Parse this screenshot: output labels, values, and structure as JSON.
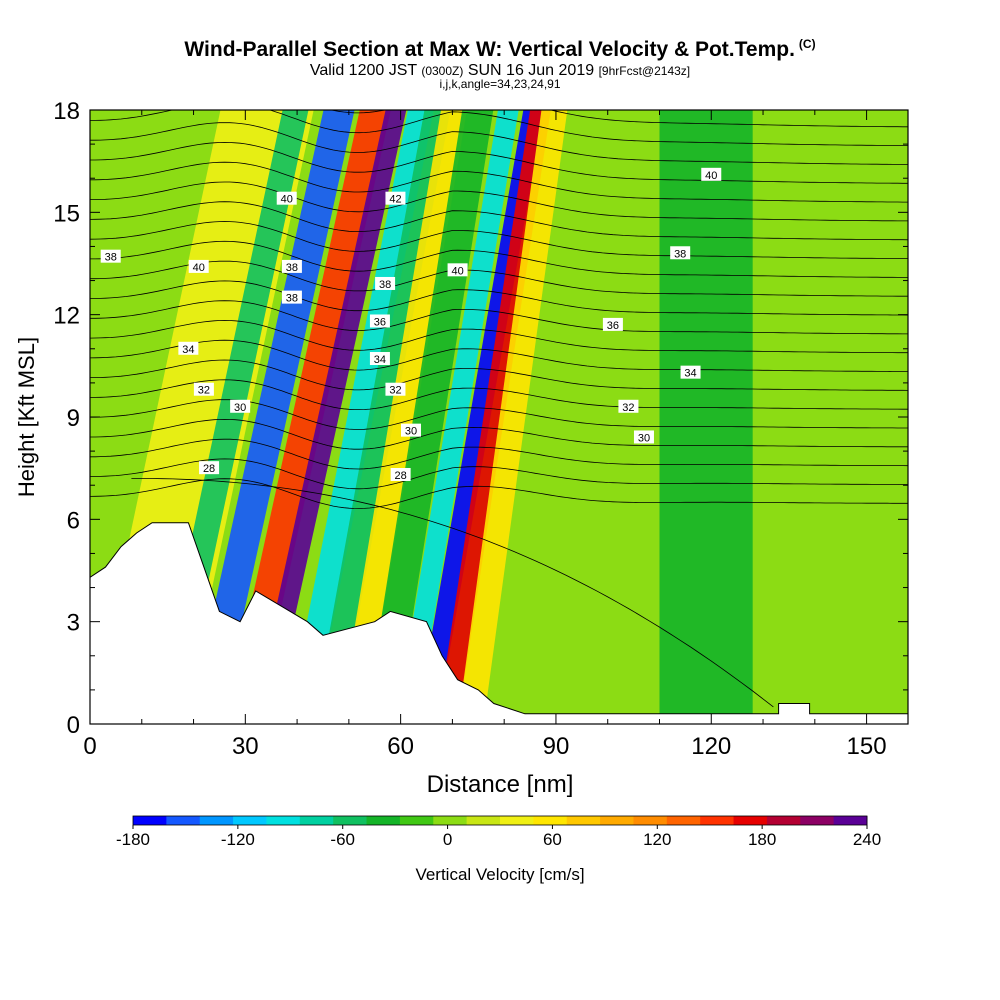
{
  "header": {
    "title": "Wind-Parallel Section at Max W: Vertical Velocity & Pot.Temp.",
    "copyright": "(C)",
    "valid_prefix": "Valid 1200 JST",
    "valid_utc": "(0300Z)",
    "valid_date": "SUN 16 Jun 2019",
    "forecast": "[9hrFcst@2143z]",
    "ijk": "i,j,k,angle=34,23,24,91"
  },
  "chart_data": {
    "type": "heatmap",
    "title": "Wind-Parallel Section at Max W: Vertical Velocity & Pot.Temp.",
    "xlabel": "Distance [nm]",
    "ylabel": "Height [Kft MSL]",
    "xlim": [
      0,
      158
    ],
    "ylim": [
      0,
      18
    ],
    "x_ticks": [
      0,
      30,
      60,
      90,
      120,
      150
    ],
    "y_ticks": [
      0,
      3,
      6,
      9,
      12,
      15,
      18
    ],
    "colorbar": {
      "label": "Vertical Velocity [cm/s]",
      "ticks": [
        -180,
        -120,
        -60,
        0,
        60,
        120,
        180,
        240
      ],
      "min": -180,
      "max": 240,
      "colors": [
        "#0000ff",
        "#1458ff",
        "#0096ff",
        "#00c8ff",
        "#00e0e0",
        "#00d0a0",
        "#10c060",
        "#14b428",
        "#40c814",
        "#8cdc14",
        "#c8e614",
        "#f0f014",
        "#ffe600",
        "#ffc800",
        "#ffaa00",
        "#ff8c00",
        "#ff6400",
        "#ff3200",
        "#e60000",
        "#b40032",
        "#8c0064",
        "#5a0096"
      ]
    },
    "terrain_kft": [
      [
        0,
        4.3
      ],
      [
        3,
        4.6
      ],
      [
        6,
        5.2
      ],
      [
        9,
        5.6
      ],
      [
        12,
        5.9
      ],
      [
        19,
        5.9
      ],
      [
        22,
        4.6
      ],
      [
        25,
        3.3
      ],
      [
        29,
        3.0
      ],
      [
        32,
        3.9
      ],
      [
        42,
        3.0
      ],
      [
        45,
        2.6
      ],
      [
        55,
        3.0
      ],
      [
        58,
        3.3
      ],
      [
        65,
        3.0
      ],
      [
        68,
        2.0
      ],
      [
        71,
        1.3
      ],
      [
        75,
        1.0
      ],
      [
        78,
        0.6
      ],
      [
        84,
        0.3
      ],
      [
        133,
        0.3
      ],
      [
        133,
        0.6
      ],
      [
        139,
        0.6
      ],
      [
        139,
        0.3
      ],
      [
        158,
        0.3
      ]
    ],
    "w_bands": [
      {
        "x_base": 0,
        "slope": 1.4,
        "width": 18,
        "value": 30
      },
      {
        "x_base": 12,
        "slope": 1.4,
        "width": 5,
        "value": -60
      },
      {
        "x_base": 19,
        "slope": 1.45,
        "width": 6,
        "value": -150
      },
      {
        "x_base": 26,
        "slope": 1.45,
        "width": 6,
        "value": 160
      },
      {
        "x_base": 31,
        "slope": 1.45,
        "width": 4,
        "value": 240
      },
      {
        "x_base": 38,
        "slope": 1.3,
        "width": 5,
        "value": -90
      },
      {
        "x_base": 43,
        "slope": 1.2,
        "width": 5,
        "value": -60
      },
      {
        "x_base": 48,
        "slope": 1.1,
        "width": 5,
        "value": 60
      },
      {
        "x_base": 53,
        "slope": 1.05,
        "width": 6,
        "value": -30
      },
      {
        "x_base": 59,
        "slope": 1.1,
        "width": 4,
        "value": -90
      },
      {
        "x_base": 63,
        "slope": 1.15,
        "width": 4,
        "value": -170
      },
      {
        "x_base": 67,
        "slope": 1.0,
        "width": 4,
        "value": 180
      },
      {
        "x_base": 71,
        "slope": 0.9,
        "width": 5,
        "value": 60
      },
      {
        "x_base": 110,
        "slope": 0.0,
        "width": 18,
        "value": -40
      }
    ],
    "theta_contours": [
      {
        "label": "28",
        "label_x": 23,
        "label_y": 7.5
      },
      {
        "label": "28",
        "label_x": 60,
        "label_y": 7.3
      },
      {
        "label": "30",
        "label_x": 29,
        "label_y": 9.3
      },
      {
        "label": "30",
        "label_x": 62,
        "label_y": 8.6
      },
      {
        "label": "30",
        "label_x": 107,
        "label_y": 8.4
      },
      {
        "label": "32",
        "label_x": 22,
        "label_y": 9.8
      },
      {
        "label": "32",
        "label_x": 59,
        "label_y": 9.8
      },
      {
        "label": "32",
        "label_x": 104,
        "label_y": 9.3
      },
      {
        "label": "34",
        "label_x": 19,
        "label_y": 11.0
      },
      {
        "label": "34",
        "label_x": 56,
        "label_y": 10.7
      },
      {
        "label": "34",
        "label_x": 116,
        "label_y": 10.3
      },
      {
        "label": "36",
        "label_x": 56,
        "label_y": 11.8
      },
      {
        "label": "36",
        "label_x": 101,
        "label_y": 11.7
      },
      {
        "label": "38",
        "label_x": 4,
        "label_y": 13.7
      },
      {
        "label": "38",
        "label_x": 39,
        "label_y": 12.5
      },
      {
        "label": "38",
        "label_x": 39,
        "label_y": 13.4
      },
      {
        "label": "38",
        "label_x": 57,
        "label_y": 12.9
      },
      {
        "label": "38",
        "label_x": 114,
        "label_y": 13.8
      },
      {
        "label": "40",
        "label_x": 21,
        "label_y": 13.4
      },
      {
        "label": "40",
        "label_x": 38,
        "label_y": 15.4
      },
      {
        "label": "40",
        "label_x": 71,
        "label_y": 13.3
      },
      {
        "label": "40",
        "label_x": 120,
        "label_y": 16.1
      },
      {
        "label": "42",
        "label_x": 59,
        "label_y": 15.4
      }
    ]
  }
}
